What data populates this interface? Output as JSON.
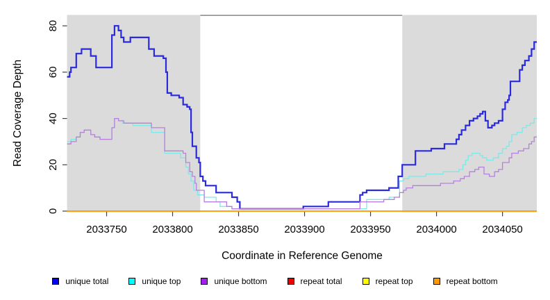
{
  "chart_data": {
    "type": "line",
    "step": true,
    "xlabel": "Coordinate in Reference Genome",
    "ylabel": "Read Coverage Depth",
    "xlim": [
      2033720,
      2034076
    ],
    "ylim": [
      0,
      84
    ],
    "x_ticks": [
      "2033750",
      "2033800",
      "2033850",
      "2033900",
      "2033950",
      "2034000",
      "2034050"
    ],
    "y_ticks": [
      "0",
      "20",
      "40",
      "60",
      "80"
    ],
    "grid": "off",
    "legend_position": "bottom-horizontal",
    "shaded_regions": [
      {
        "name": "left-repeat-shade",
        "from": 2033720,
        "to": 2033821,
        "color": "#DBDBDB"
      },
      {
        "name": "right-repeat-shade",
        "from": 2033974,
        "to": 2034076,
        "color": "#DBDBDB"
      }
    ],
    "highlight_region": {
      "name": "unique-region-box",
      "from": 2033821,
      "to": 2033974,
      "fill": "#FFFFFF",
      "border_color": "#6E6E6E"
    },
    "series": [
      {
        "name": "unique total",
        "color": "#2A2ADC",
        "width": 2.2,
        "points": [
          [
            2033720,
            58
          ],
          [
            2033722,
            60
          ],
          [
            2033723,
            62
          ],
          [
            2033727,
            68
          ],
          [
            2033731,
            70
          ],
          [
            2033738,
            67
          ],
          [
            2033742,
            62
          ],
          [
            2033754,
            76
          ],
          [
            2033756,
            80
          ],
          [
            2033759,
            78
          ],
          [
            2033761,
            75
          ],
          [
            2033763,
            73
          ],
          [
            2033768,
            75
          ],
          [
            2033782,
            70
          ],
          [
            2033786,
            67
          ],
          [
            2033793,
            66
          ],
          [
            2033795,
            60
          ],
          [
            2033796,
            51
          ],
          [
            2033799,
            50
          ],
          [
            2033805,
            49
          ],
          [
            2033808,
            46
          ],
          [
            2033811,
            45
          ],
          [
            2033813,
            44
          ],
          [
            2033814,
            34
          ],
          [
            2033815,
            28
          ],
          [
            2033818,
            23
          ],
          [
            2033820,
            21
          ],
          [
            2033821,
            15
          ],
          [
            2033823,
            13
          ],
          [
            2033825,
            11
          ],
          [
            2033833,
            8
          ],
          [
            2033845,
            6
          ],
          [
            2033849,
            4
          ],
          [
            2033851,
            1
          ],
          [
            2033899,
            2
          ],
          [
            2033918,
            4
          ],
          [
            2033942,
            7
          ],
          [
            2033944,
            8
          ],
          [
            2033947,
            9
          ],
          [
            2033964,
            10
          ],
          [
            2033971,
            15
          ],
          [
            2033974,
            20
          ],
          [
            2033984,
            26
          ],
          [
            2033996,
            27
          ],
          [
            2034006,
            29
          ],
          [
            2034015,
            31
          ],
          [
            2034017,
            33
          ],
          [
            2034019,
            35
          ],
          [
            2034022,
            37
          ],
          [
            2034025,
            39
          ],
          [
            2034028,
            40
          ],
          [
            2034031,
            41
          ],
          [
            2034033,
            42
          ],
          [
            2034035,
            43
          ],
          [
            2034037,
            39
          ],
          [
            2034039,
            36
          ],
          [
            2034042,
            37
          ],
          [
            2034044,
            38
          ],
          [
            2034047,
            39
          ],
          [
            2034050,
            44
          ],
          [
            2034052,
            47
          ],
          [
            2034054,
            48
          ],
          [
            2034055,
            50
          ],
          [
            2034056,
            56
          ],
          [
            2034063,
            61
          ],
          [
            2034065,
            63
          ],
          [
            2034067,
            65
          ],
          [
            2034070,
            67
          ],
          [
            2034072,
            70
          ],
          [
            2034074,
            73
          ]
        ]
      },
      {
        "name": "unique top",
        "color": "#7DE8E8",
        "width": 1.3,
        "points": [
          [
            2033720,
            30
          ],
          [
            2033723,
            31
          ],
          [
            2033727,
            32
          ],
          [
            2033730,
            34
          ],
          [
            2033733,
            35
          ],
          [
            2033738,
            33
          ],
          [
            2033741,
            32
          ],
          [
            2033745,
            31
          ],
          [
            2033754,
            36
          ],
          [
            2033756,
            40
          ],
          [
            2033759,
            39
          ],
          [
            2033762,
            38
          ],
          [
            2033770,
            37
          ],
          [
            2033784,
            34
          ],
          [
            2033794,
            25
          ],
          [
            2033806,
            23
          ],
          [
            2033810,
            19
          ],
          [
            2033812,
            16
          ],
          [
            2033814,
            13
          ],
          [
            2033816,
            9
          ],
          [
            2033819,
            7
          ],
          [
            2033824,
            6
          ],
          [
            2033833,
            4
          ],
          [
            2033836,
            2
          ],
          [
            2033845,
            1
          ],
          [
            2033947,
            5
          ],
          [
            2033964,
            6
          ],
          [
            2033972,
            13
          ],
          [
            2033975,
            14
          ],
          [
            2033979,
            15
          ],
          [
            2033992,
            16
          ],
          [
            2034005,
            17
          ],
          [
            2034017,
            18
          ],
          [
            2034020,
            20
          ],
          [
            2034022,
            22
          ],
          [
            2034024,
            24
          ],
          [
            2034027,
            25
          ],
          [
            2034033,
            24
          ],
          [
            2034035,
            23
          ],
          [
            2034038,
            22
          ],
          [
            2034043,
            23
          ],
          [
            2034047,
            25
          ],
          [
            2034050,
            27
          ],
          [
            2034053,
            28
          ],
          [
            2034055,
            30
          ],
          [
            2034057,
            33
          ],
          [
            2034061,
            34
          ],
          [
            2034065,
            36
          ],
          [
            2034068,
            37
          ],
          [
            2034071,
            38
          ],
          [
            2034074,
            40
          ]
        ]
      },
      {
        "name": "unique bottom",
        "color": "#B77FDD",
        "width": 1.3,
        "points": [
          [
            2033720,
            29
          ],
          [
            2033723,
            30
          ],
          [
            2033727,
            32
          ],
          [
            2033730,
            34
          ],
          [
            2033733,
            35
          ],
          [
            2033738,
            33
          ],
          [
            2033741,
            32
          ],
          [
            2033745,
            31
          ],
          [
            2033754,
            36
          ],
          [
            2033756,
            40
          ],
          [
            2033759,
            39
          ],
          [
            2033763,
            38
          ],
          [
            2033784,
            36
          ],
          [
            2033794,
            26
          ],
          [
            2033808,
            25
          ],
          [
            2033810,
            21
          ],
          [
            2033813,
            17
          ],
          [
            2033815,
            15
          ],
          [
            2033817,
            12
          ],
          [
            2033818,
            9
          ],
          [
            2033824,
            4
          ],
          [
            2033841,
            2
          ],
          [
            2033845,
            1
          ],
          [
            2033942,
            4
          ],
          [
            2033960,
            5
          ],
          [
            2033968,
            6
          ],
          [
            2033972,
            8
          ],
          [
            2033975,
            9
          ],
          [
            2033977,
            10
          ],
          [
            2033982,
            11
          ],
          [
            2034003,
            12
          ],
          [
            2034013,
            13
          ],
          [
            2034018,
            14
          ],
          [
            2034021,
            15
          ],
          [
            2034025,
            17
          ],
          [
            2034029,
            18
          ],
          [
            2034032,
            19
          ],
          [
            2034036,
            16
          ],
          [
            2034040,
            15
          ],
          [
            2034044,
            17
          ],
          [
            2034047,
            18
          ],
          [
            2034050,
            21
          ],
          [
            2034055,
            23
          ],
          [
            2034057,
            25
          ],
          [
            2034062,
            26
          ],
          [
            2034066,
            27
          ],
          [
            2034070,
            29
          ],
          [
            2034072,
            30
          ],
          [
            2034074,
            32
          ]
        ]
      },
      {
        "name": "repeat total",
        "color": "#EE0000",
        "width": 1.3,
        "points": [
          [
            2033720,
            0
          ],
          [
            2034076,
            0
          ]
        ]
      },
      {
        "name": "repeat top",
        "color": "#FFFF00",
        "width": 1.3,
        "points": [
          [
            2033720,
            0
          ],
          [
            2034076,
            0
          ]
        ]
      },
      {
        "name": "repeat bottom",
        "color": "#FF9C00",
        "width": 1.7,
        "points": [
          [
            2033720,
            0
          ],
          [
            2034076,
            0
          ]
        ]
      }
    ],
    "legend": [
      {
        "label": "unique total",
        "swatch": "#0000EE"
      },
      {
        "label": "unique top",
        "swatch": "#00FFFF"
      },
      {
        "label": "unique bottom",
        "swatch": "#A020F0"
      },
      {
        "label": "repeat total",
        "swatch": "#EE0000"
      },
      {
        "label": "repeat top",
        "swatch": "#FFFF00"
      },
      {
        "label": "repeat bottom",
        "swatch": "#FF9C00"
      }
    ]
  }
}
